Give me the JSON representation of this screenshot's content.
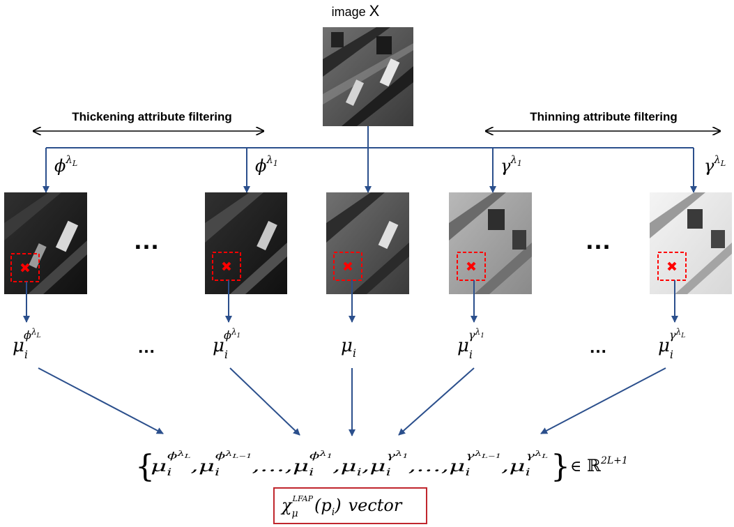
{
  "title": {
    "prefix": "image ",
    "var": "X"
  },
  "sections": {
    "left": "Thickening attribute filtering",
    "right": "Thinning attribute filtering"
  },
  "operators": [
    {
      "base": "ϕ",
      "sup": "λ",
      "subsub": "L"
    },
    {
      "base": "ϕ",
      "sup": "λ",
      "subsub": "1"
    },
    {
      "base": "",
      "sup": "",
      "subsub": ""
    },
    {
      "base": "γ",
      "sup": "λ",
      "subsub": "1"
    },
    {
      "base": "γ",
      "sup": "λ",
      "subsub": "L"
    }
  ],
  "ellipsis": "…",
  "features": [
    {
      "base": "μ",
      "sub": "i",
      "supbase": "ϕ",
      "sup": "λ",
      "subsub": "L"
    },
    {
      "base": "μ",
      "sub": "i",
      "supbase": "ϕ",
      "sup": "λ",
      "subsub": "1"
    },
    {
      "base": "μ",
      "sub": "i",
      "supbase": "",
      "sup": "",
      "subsub": ""
    },
    {
      "base": "μ",
      "sub": "i",
      "supbase": "γ",
      "sup": "λ",
      "subsub": "1"
    },
    {
      "base": "μ",
      "sub": "i",
      "supbase": "γ",
      "sup": "λ",
      "subsub": "L"
    }
  ],
  "vector_set": {
    "open": "{",
    "close": "}",
    "sep": ",",
    "dots": "…",
    "terms": [
      {
        "base": "μ",
        "sub": "i",
        "supbase": "ϕ",
        "sup": "λ",
        "subsub": "L"
      },
      {
        "base": "μ",
        "sub": "i",
        "supbase": "ϕ",
        "sup": "λ",
        "subsub": "L−1"
      },
      {
        "base": "…",
        "sub": "",
        "supbase": "",
        "sup": "",
        "subsub": ""
      },
      {
        "base": "μ",
        "sub": "i",
        "supbase": "ϕ",
        "sup": "λ",
        "subsub": "1"
      },
      {
        "base": "μ",
        "sub": "i",
        "supbase": "",
        "sup": "",
        "subsub": ""
      },
      {
        "base": "μ",
        "sub": "i",
        "supbase": "γ",
        "sup": "λ",
        "subsub": "1"
      },
      {
        "base": "…",
        "sub": "",
        "supbase": "",
        "sup": "",
        "subsub": ""
      },
      {
        "base": "μ",
        "sub": "i",
        "supbase": "γ",
        "sup": "λ",
        "subsub": "L−1"
      },
      {
        "base": "μ",
        "sub": "i",
        "supbase": "γ",
        "sup": "λ",
        "subsub": "L"
      }
    ],
    "membership": "∈",
    "space": "ℝ",
    "space_sup": "2L+1"
  },
  "output_box": {
    "symbol": "χ",
    "sub": "μ",
    "sup": "LFAP",
    "arg": "(p",
    "arg_sub": "i",
    "arg_close": ")",
    "suffix": "vector"
  },
  "colors": {
    "arrow_blue": "#2b4f8c",
    "marker_red": "#ff0000",
    "box_red": "#c0262d",
    "text": "#000000"
  }
}
